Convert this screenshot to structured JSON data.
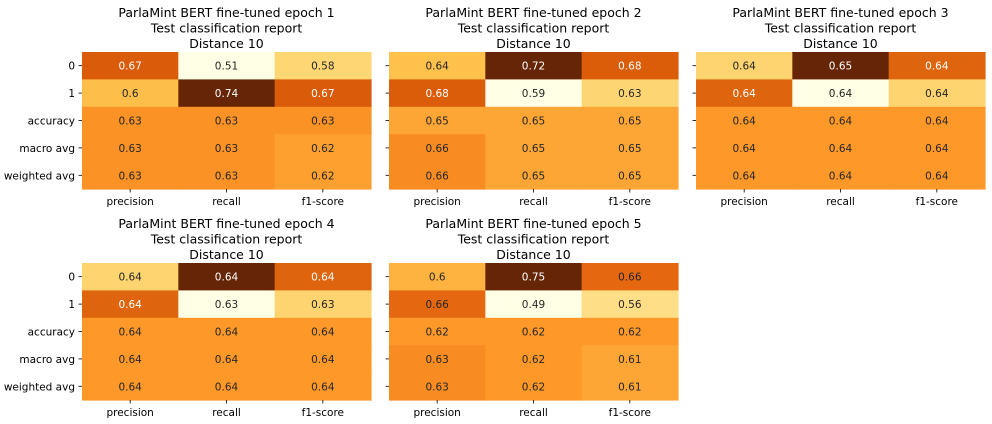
{
  "chart_data": [
    {
      "type": "heatmap",
      "title_lines": [
        "ParlaMint BERT fine-tuned epoch 1",
        "Test classification report",
        "Distance 10"
      ],
      "columns": [
        "precision",
        "recall",
        "f1-score"
      ],
      "rows": [
        "0",
        "1",
        "accuracy",
        "macro avg",
        "weighted avg"
      ],
      "values": [
        [
          0.67,
          0.51,
          0.58
        ],
        [
          0.6,
          0.74,
          0.67
        ],
        [
          0.63,
          0.63,
          0.63
        ],
        [
          0.63,
          0.63,
          0.62
        ],
        [
          0.63,
          0.63,
          0.62
        ]
      ],
      "show_row_labels": true,
      "colormap": "YlOrBr"
    },
    {
      "type": "heatmap",
      "title_lines": [
        "ParlaMint BERT fine-tuned epoch 2",
        "Test classification report",
        "Distance 10"
      ],
      "columns": [
        "precision",
        "recall",
        "f1-score"
      ],
      "rows": [
        "0",
        "1",
        "accuracy",
        "macro avg",
        "weighted avg"
      ],
      "values": [
        [
          0.64,
          0.72,
          0.68
        ],
        [
          0.68,
          0.59,
          0.63
        ],
        [
          0.65,
          0.65,
          0.65
        ],
        [
          0.66,
          0.65,
          0.65
        ],
        [
          0.66,
          0.65,
          0.65
        ]
      ],
      "show_row_labels": false,
      "colormap": "YlOrBr"
    },
    {
      "type": "heatmap",
      "title_lines": [
        "ParlaMint BERT fine-tuned epoch 3",
        "Test classification report",
        "Distance 10"
      ],
      "columns": [
        "precision",
        "recall",
        "f1-score"
      ],
      "rows": [
        "0",
        "1",
        "accuracy",
        "macro avg",
        "weighted avg"
      ],
      "values": [
        [
          0.64,
          0.65,
          0.64
        ],
        [
          0.64,
          0.64,
          0.64
        ],
        [
          0.64,
          0.64,
          0.64
        ],
        [
          0.64,
          0.64,
          0.64
        ],
        [
          0.64,
          0.64,
          0.64
        ]
      ],
      "display_values": [
        [
          "0.64",
          "0.65",
          "0.64"
        ],
        [
          "0.64",
          "0.64",
          "0.64"
        ],
        [
          "0.64",
          "0.64",
          "0.64"
        ],
        [
          "0.64",
          "0.64",
          "0.64"
        ],
        [
          "0.64",
          "0.64",
          "0.64"
        ]
      ],
      "cell_colors": [
        [
          "#fdd470",
          "#662506",
          "#df640e"
        ],
        [
          "#df640e",
          "#ffffe5",
          "#fdd470"
        ],
        [
          "#fe9929",
          "#fe9929",
          "#fe9929"
        ],
        [
          "#fe9929",
          "#fe9929",
          "#fe9929"
        ],
        [
          "#fe9929",
          "#fe9929",
          "#fe9929"
        ]
      ],
      "show_row_labels": false,
      "colormap": "YlOrBr"
    },
    {
      "type": "heatmap",
      "title_lines": [
        "ParlaMint BERT fine-tuned epoch 4",
        "Test classification report",
        "Distance 10"
      ],
      "columns": [
        "precision",
        "recall",
        "f1-score"
      ],
      "rows": [
        "0",
        "1",
        "accuracy",
        "macro avg",
        "weighted avg"
      ],
      "values": [
        [
          0.64,
          0.64,
          0.64
        ],
        [
          0.64,
          0.63,
          0.63
        ],
        [
          0.64,
          0.64,
          0.64
        ],
        [
          0.64,
          0.64,
          0.64
        ],
        [
          0.64,
          0.64,
          0.64
        ]
      ],
      "cell_colors": [
        [
          "#fdd470",
          "#662506",
          "#df640e"
        ],
        [
          "#df640e",
          "#ffffe5",
          "#fdd470"
        ],
        [
          "#fe9929",
          "#fe9929",
          "#fe9929"
        ],
        [
          "#fe9929",
          "#fe9929",
          "#fe9929"
        ],
        [
          "#fe9929",
          "#fe9929",
          "#fe9929"
        ]
      ],
      "show_row_labels": true,
      "colormap": "YlOrBr"
    },
    {
      "type": "heatmap",
      "title_lines": [
        "ParlaMint BERT fine-tuned epoch 5",
        "Test classification report",
        "Distance 10"
      ],
      "columns": [
        "precision",
        "recall",
        "f1-score"
      ],
      "rows": [
        "0",
        "1",
        "accuracy",
        "macro avg",
        "weighted avg"
      ],
      "values": [
        [
          0.6,
          0.75,
          0.66
        ],
        [
          0.66,
          0.49,
          0.56
        ],
        [
          0.62,
          0.62,
          0.62
        ],
        [
          0.63,
          0.62,
          0.61
        ],
        [
          0.63,
          0.62,
          0.61
        ]
      ],
      "show_row_labels": false,
      "colormap": "YlOrBr"
    }
  ]
}
